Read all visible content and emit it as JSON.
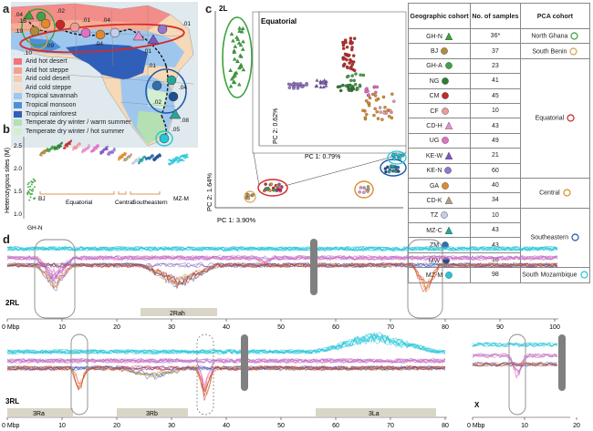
{
  "panels": {
    "a": "a",
    "b": "b",
    "c": "c",
    "d": "d"
  },
  "map": {
    "numbers": [
      ".04",
      ".02",
      ".15",
      ".19",
      ".10",
      ".09",
      ".01",
      ".04",
      ".01",
      ".01",
      ".04",
      ".08",
      ".05",
      ".04",
      ".01",
      ".02"
    ]
  },
  "legend_a": [
    {
      "label": "Arid hot desert",
      "color": "#f2737a"
    },
    {
      "label": "Arid hot steppe",
      "color": "#f4a08c"
    },
    {
      "label": "Arid cold desert",
      "color": "#f8c9a9"
    },
    {
      "label": "Arid cold steppe",
      "color": "#f9dfc0"
    },
    {
      "label": "Tropical savannah",
      "color": "#9fc7ee"
    },
    {
      "label": "Tropical monsoon",
      "color": "#4f8fd9"
    },
    {
      "label": "Tropical rainforest",
      "color": "#2f5fb8"
    },
    {
      "label": "Temperate dry winter / warm summer",
      "color": "#b5e0b1"
    },
    {
      "label": "Temperate dry winter / hot summer",
      "color": "#d2efd0"
    }
  ],
  "panel_b": {
    "ylabel": "Heterozygous sites (M)",
    "ticks": [
      "2.5",
      "2.0",
      "1.5",
      "1.0"
    ],
    "labels": {
      "bj": "BJ",
      "ghn": "GH-N",
      "equatorial": "Equatorial",
      "central": "Central",
      "southeastern": "Southeastern",
      "mzm": "MZ-M"
    }
  },
  "panel_c": {
    "label_2l": "2L",
    "inset_title": "Equatorial",
    "inset_xlabel": "PC 1: 0.79%",
    "inset_ylabel": "PC 2: 0.62%",
    "xlabel": "PC 1: 3.90%",
    "ylabel": "PC 2: 1.64%"
  },
  "table": {
    "headers": [
      "Geographic cohort",
      "No. of samples",
      "PCA cohort"
    ],
    "rows": [
      {
        "code": "GH-N",
        "n": "36*",
        "marker": "triangle",
        "color": "#3aa33a"
      },
      {
        "code": "BJ",
        "n": "37",
        "marker": "circle",
        "color": "#b08b3c"
      },
      {
        "code": "GH-A",
        "n": "23",
        "marker": "circle",
        "color": "#43a047"
      },
      {
        "code": "NG",
        "n": "41",
        "marker": "circle",
        "color": "#2e7d32"
      },
      {
        "code": "CM",
        "n": "45",
        "marker": "circle",
        "color": "#c62828"
      },
      {
        "code": "CF",
        "n": "10",
        "marker": "circle",
        "color": "#ef9a9a"
      },
      {
        "code": "CD-H",
        "n": "43",
        "marker": "triangle",
        "color": "#e58fcf"
      },
      {
        "code": "UG",
        "n": "49",
        "marker": "circle",
        "color": "#e36fc2"
      },
      {
        "code": "KE-W",
        "n": "21",
        "marker": "triangle",
        "color": "#7e57c2"
      },
      {
        "code": "KE-N",
        "n": "60",
        "marker": "circle",
        "color": "#9575cd"
      },
      {
        "code": "GA",
        "n": "40",
        "marker": "circle",
        "color": "#e08a2a"
      },
      {
        "code": "CD-K",
        "n": "34",
        "marker": "triangle",
        "color": "#b0a080"
      },
      {
        "code": "TZ",
        "n": "10",
        "marker": "circle",
        "color": "#c7cde8"
      },
      {
        "code": "MZ-C",
        "n": "43",
        "marker": "triangle",
        "color": "#26a69a"
      },
      {
        "code": "ZM",
        "n": "43",
        "marker": "circle",
        "color": "#2f6fb0"
      },
      {
        "code": "MW",
        "n": "18",
        "marker": "circle",
        "color": "#1e4f8f"
      },
      {
        "code": "MZ-M",
        "n": "98",
        "marker": "circle",
        "color": "#26c6da"
      }
    ],
    "groups": [
      {
        "label": "North Ghana",
        "ring": "#3aa33a",
        "row_start": 0,
        "row_span": 1
      },
      {
        "label": "South Benin",
        "ring": "#d4a35a",
        "row_start": 1,
        "row_span": 1
      },
      {
        "label": "Equatorial",
        "ring": "#c62828",
        "row_start": 2,
        "row_span": 8
      },
      {
        "label": "Central",
        "ring": "#e08a2a",
        "row_start": 10,
        "row_span": 2
      },
      {
        "label": "Southeastern",
        "ring": "#1e5aa8",
        "row_start": 12,
        "row_span": 4
      },
      {
        "label": "South Mozambique",
        "ring": "#26c6da",
        "row_start": 16,
        "row_span": 1
      }
    ]
  },
  "panel_d": {
    "chr_2rl": "2RL",
    "chr_3rl": "3RL",
    "chr_x": "X",
    "unit": "Mbp",
    "ticks_2rl": [
      "0 Mbp",
      "10",
      "20",
      "30",
      "40",
      "50",
      "60",
      "70",
      "80",
      "90",
      "100"
    ],
    "ticks_3rl": [
      "0 Mbp",
      "10",
      "20",
      "30",
      "40",
      "50",
      "60",
      "70",
      "80"
    ],
    "ticks_x": [
      "0 Mbp",
      "10",
      "20"
    ],
    "inversions": {
      "rah": "2Rah",
      "ra3": "3Ra",
      "rb3": "3Rb",
      "la3": "3La"
    }
  }
}
